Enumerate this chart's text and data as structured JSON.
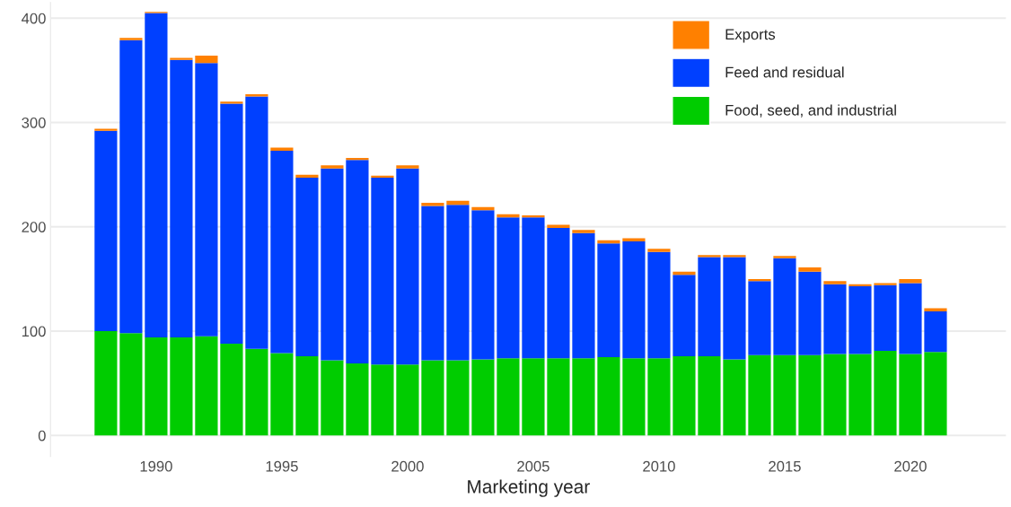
{
  "chart_data": {
    "type": "bar",
    "stacked": true,
    "xlabel": "Marketing year",
    "x": [
      1988,
      1989,
      1990,
      1991,
      1992,
      1993,
      1994,
      1995,
      1996,
      1997,
      1998,
      1999,
      2000,
      2001,
      2002,
      2003,
      2004,
      2005,
      2006,
      2007,
      2008,
      2009,
      2010,
      2011,
      2012,
      2013,
      2014,
      2015,
      2016,
      2017,
      2018,
      2019,
      2020,
      2021
    ],
    "series": [
      {
        "name": "Food, seed, and industrial",
        "color": "#00cc00",
        "values": [
          100,
          98,
          94,
          94,
          95,
          88,
          83,
          79,
          76,
          72,
          69,
          68,
          68,
          72,
          72,
          73,
          74,
          74,
          74,
          74,
          75,
          74,
          74,
          76,
          76,
          73,
          77,
          77,
          77,
          78,
          78,
          81,
          78,
          80
        ]
      },
      {
        "name": "Feed and residual",
        "color": "#0040ff",
        "values": [
          192,
          281,
          311,
          266,
          262,
          230,
          242,
          194,
          171,
          184,
          195,
          179,
          188,
          148,
          149,
          143,
          135,
          135,
          125,
          120,
          109,
          112,
          102,
          78,
          95,
          98,
          71,
          93,
          80,
          67,
          65,
          63,
          68,
          39
        ]
      },
      {
        "name": "Exports",
        "color": "#ff8000",
        "values": [
          2,
          2,
          1,
          2,
          7,
          2,
          2,
          3,
          3,
          3,
          2,
          2,
          3,
          3,
          4,
          3,
          3,
          2,
          3,
          3,
          3,
          3,
          3,
          3,
          2,
          2,
          2,
          2,
          4,
          3,
          2,
          2,
          4,
          3
        ]
      }
    ],
    "xlim": [
      1985.8,
      2023.8
    ],
    "xticks": [
      1990,
      1995,
      2000,
      2005,
      2010,
      2015,
      2020
    ],
    "ylim": [
      -20,
      415
    ],
    "yticks": [
      0,
      100,
      200,
      300,
      400
    ],
    "grid": "y",
    "legend": "top right"
  }
}
